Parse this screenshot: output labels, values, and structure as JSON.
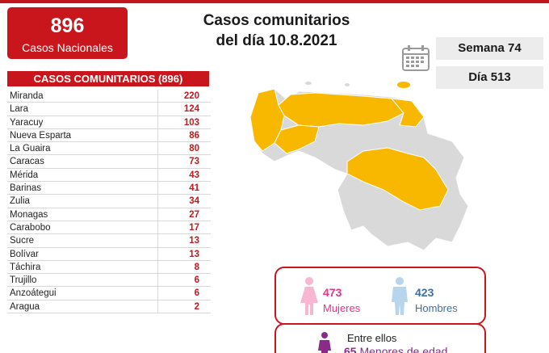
{
  "total": {
    "number": "896",
    "label": "Casos Nacionales"
  },
  "title": {
    "line1": "Casos comunitarios",
    "line2": "del día 10.8.2021"
  },
  "calendar_icon": "calendar-icon",
  "week_label": "Semana 74",
  "day_label": "Día 513",
  "table": {
    "header": "CASOS COMUNITARIOS (896)",
    "rows": [
      {
        "name": "Miranda",
        "value": "220"
      },
      {
        "name": "Lara",
        "value": "124"
      },
      {
        "name": "Yaracuy",
        "value": "103"
      },
      {
        "name": "Nueva Esparta",
        "value": "86"
      },
      {
        "name": "La Guaira",
        "value": "80"
      },
      {
        "name": "Caracas",
        "value": "73"
      },
      {
        "name": "Mérida",
        "value": "43"
      },
      {
        "name": "Barinas",
        "value": "41"
      },
      {
        "name": "Zulia",
        "value": "34"
      },
      {
        "name": "Monagas",
        "value": "27"
      },
      {
        "name": "Carabobo",
        "value": "17"
      },
      {
        "name": "Sucre",
        "value": "13"
      },
      {
        "name": "Bolívar",
        "value": "13"
      },
      {
        "name": "Táchira",
        "value": "8"
      },
      {
        "name": "Trujillo",
        "value": "6"
      },
      {
        "name": "Anzoátegui",
        "value": "6"
      },
      {
        "name": "Aragua",
        "value": "2"
      }
    ]
  },
  "gender": {
    "women": {
      "count": "473",
      "label": "Mujeres",
      "color": "#e6338e"
    },
    "men": {
      "count": "423",
      "label": "Hombres",
      "color": "#3d6fa3"
    }
  },
  "minors": {
    "intro": "Entre ellos",
    "count": "65",
    "label": "Menores de edad",
    "color": "#8a2b8a"
  },
  "colors": {
    "accent": "#c9161d",
    "map_highlight": "#f9b800",
    "map_base": "#d9d9d9"
  }
}
